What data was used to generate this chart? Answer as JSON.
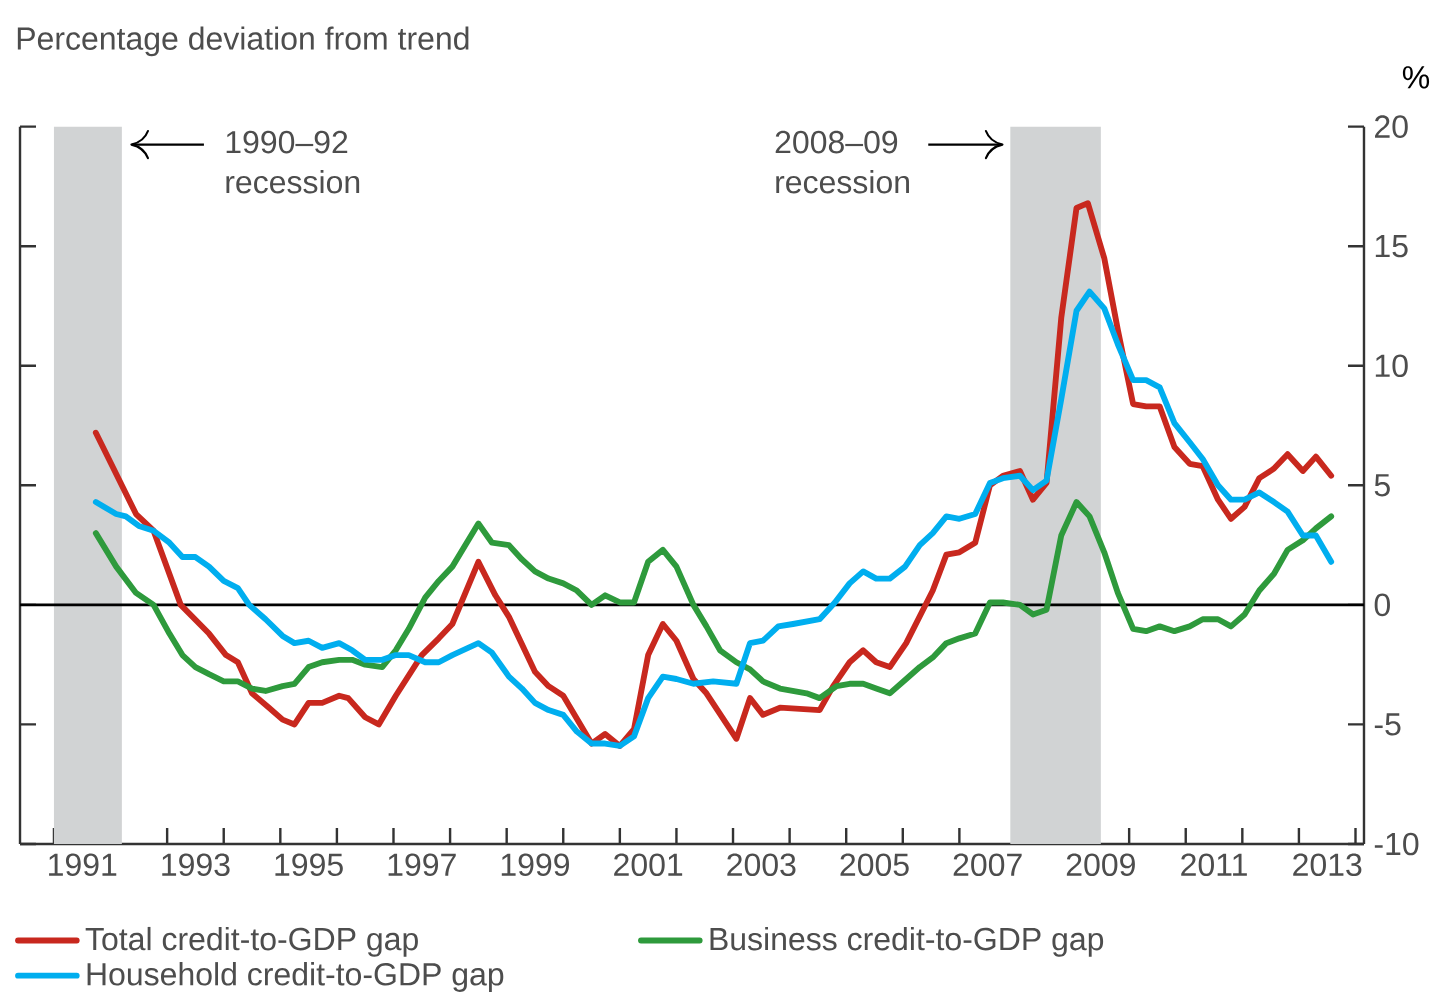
{
  "chart_data": {
    "type": "line",
    "subtitle": "Percentage deviation from trend",
    "ylabel": "%",
    "xlim": [
      1990.4,
      2014.15
    ],
    "ylim": [
      -10,
      20
    ],
    "xticks": [
      {
        "value": 1991,
        "label": null
      },
      {
        "value": 1991.5,
        "label": "1991"
      },
      {
        "value": 1992,
        "label": null
      },
      {
        "value": 1993,
        "label": null
      },
      {
        "value": 1993.5,
        "label": "1993"
      },
      {
        "value": 1994,
        "label": null
      },
      {
        "value": 1995,
        "label": null
      },
      {
        "value": 1995.5,
        "label": "1995"
      },
      {
        "value": 1996,
        "label": null
      },
      {
        "value": 1997,
        "label": null
      },
      {
        "value": 1997.5,
        "label": "1997"
      },
      {
        "value": 1998,
        "label": null
      },
      {
        "value": 1999,
        "label": null
      },
      {
        "value": 1999.5,
        "label": "1999"
      },
      {
        "value": 2000,
        "label": null
      },
      {
        "value": 2001,
        "label": null
      },
      {
        "value": 2001.5,
        "label": "2001"
      },
      {
        "value": 2002,
        "label": null
      },
      {
        "value": 2003,
        "label": null
      },
      {
        "value": 2003.5,
        "label": "2003"
      },
      {
        "value": 2004,
        "label": null
      },
      {
        "value": 2005,
        "label": null
      },
      {
        "value": 2005.5,
        "label": "2005"
      },
      {
        "value": 2006,
        "label": null
      },
      {
        "value": 2007,
        "label": null
      },
      {
        "value": 2007.5,
        "label": "2007"
      },
      {
        "value": 2008,
        "label": null
      },
      {
        "value": 2009,
        "label": null
      },
      {
        "value": 2009.5,
        "label": "2009"
      },
      {
        "value": 2010,
        "label": null
      },
      {
        "value": 2011,
        "label": null
      },
      {
        "value": 2011.5,
        "label": "2011"
      },
      {
        "value": 2012,
        "label": null
      },
      {
        "value": 2013,
        "label": null
      },
      {
        "value": 2013.5,
        "label": "2013"
      },
      {
        "value": 2014,
        "label": null
      }
    ],
    "yticks": [
      -10,
      -5,
      0,
      5,
      10,
      15,
      20
    ],
    "legend": "bottom",
    "line_style": "solid",
    "ref_lines": [
      {
        "axis": "y",
        "value": 0,
        "color": "#000000"
      }
    ],
    "bands": [
      {
        "axis": "x",
        "from": 1991.0,
        "to": 1992.2,
        "label": "1990–92 recession",
        "color": "#d1d3d4"
      },
      {
        "axis": "x",
        "from": 2007.9,
        "to": 2009.5,
        "label": "2008–09 recession",
        "color": "#d1d3d4"
      }
    ],
    "series": [
      {
        "name": "Total credit-to-GDP gap",
        "color": "#c8281e",
        "x": [
          1991.74,
          1992.45,
          1992.76,
          1993.24,
          1993.74,
          1994.04,
          1994.25,
          1994.5,
          1994.8,
          1995.04,
          1995.25,
          1995.5,
          1995.74,
          1996.04,
          1996.2,
          1996.5,
          1996.74,
          1997.04,
          1997.5,
          1997.8,
          1998.04,
          1998.5,
          1998.8,
          1999.04,
          1999.5,
          1999.74,
          2000.0,
          2000.5,
          2000.74,
          2001.0,
          2001.25,
          2001.5,
          2001.76,
          2002.0,
          2002.3,
          2002.53,
          2003.06,
          2003.3,
          2003.53,
          2003.83,
          2004.53,
          2004.77,
          2005.06,
          2005.3,
          2005.53,
          2005.77,
          2006.06,
          2006.53,
          2006.77,
          2007.0,
          2007.28,
          2007.54,
          2007.77,
          2008.07,
          2008.3,
          2008.54,
          2008.8,
          2009.07,
          2009.27,
          2009.56,
          2009.8,
          2010.07,
          2010.3,
          2010.54,
          2010.8,
          2011.07,
          2011.3,
          2011.57,
          2011.8,
          2012.04,
          2012.3,
          2012.56,
          2012.8,
          2013.07,
          2013.3,
          2013.57
        ],
        "values": [
          7.2,
          3.8,
          3.1,
          0,
          -1.2,
          -2.1,
          -2.4,
          -3.7,
          -4.3,
          -4.8,
          -5.0,
          -4.1,
          -4.1,
          -3.8,
          -3.9,
          -4.7,
          -5.0,
          -3.8,
          -2.1,
          -1.4,
          -0.8,
          1.8,
          0.4,
          -0.5,
          -2.8,
          -3.4,
          -3.8,
          -5.8,
          -5.4,
          -5.9,
          -5.2,
          -2.1,
          -0.8,
          -1.5,
          -3.1,
          -3.7,
          -5.6,
          -3.9,
          -4.6,
          -4.3,
          -4.4,
          -3.4,
          -2.4,
          -1.9,
          -2.4,
          -2.6,
          -1.6,
          0.6,
          2.1,
          2.2,
          2.6,
          5.0,
          5.4,
          5.6,
          4.4,
          5.1,
          12.0,
          16.6,
          16.8,
          14.5,
          11.5,
          8.4,
          8.3,
          8.3,
          6.6,
          5.9,
          5.8,
          4.4,
          3.6,
          4.1,
          5.3,
          5.7,
          6.3,
          5.6,
          6.2,
          5.4
        ]
      },
      {
        "name": "Business credit-to-GDP gap",
        "color": "#2e9a3c",
        "x": [
          1991.74,
          1992.1,
          1992.45,
          1992.76,
          1993.04,
          1993.27,
          1993.5,
          1993.74,
          1994.0,
          1994.25,
          1994.5,
          1994.74,
          1995.04,
          1995.25,
          1995.5,
          1995.74,
          1996.04,
          1996.27,
          1996.5,
          1996.8,
          1997.04,
          1997.27,
          1997.56,
          1997.8,
          1998.04,
          1998.5,
          1998.74,
          1999.04,
          1999.27,
          1999.5,
          1999.74,
          2000.0,
          2000.24,
          2000.5,
          2000.74,
          2001.0,
          2001.25,
          2001.5,
          2001.76,
          2002.0,
          2002.3,
          2002.53,
          2002.77,
          2003.06,
          2003.3,
          2003.53,
          2003.83,
          2004.3,
          2004.53,
          2004.83,
          2005.06,
          2005.3,
          2005.53,
          2005.77,
          2006.06,
          2006.3,
          2006.53,
          2006.77,
          2007.0,
          2007.28,
          2007.54,
          2007.77,
          2008.07,
          2008.3,
          2008.54,
          2008.8,
          2009.07,
          2009.3,
          2009.56,
          2009.8,
          2010.07,
          2010.3,
          2010.54,
          2010.8,
          2011.07,
          2011.3,
          2011.57,
          2011.8,
          2012.04,
          2012.3,
          2012.56,
          2012.8,
          2013.07,
          2013.3,
          2013.57
        ],
        "values": [
          3.0,
          1.6,
          0.5,
          0,
          -1.2,
          -2.1,
          -2.6,
          -2.9,
          -3.2,
          -3.2,
          -3.5,
          -3.6,
          -3.4,
          -3.3,
          -2.6,
          -2.4,
          -2.3,
          -2.3,
          -2.5,
          -2.6,
          -1.9,
          -1.0,
          0.3,
          1.0,
          1.6,
          3.4,
          2.6,
          2.5,
          1.9,
          1.4,
          1.1,
          0.9,
          0.6,
          0,
          0.4,
          0.1,
          0.1,
          1.8,
          2.3,
          1.6,
          0,
          -0.9,
          -1.9,
          -2.4,
          -2.7,
          -3.2,
          -3.5,
          -3.7,
          -3.9,
          -3.4,
          -3.3,
          -3.3,
          -3.5,
          -3.7,
          -3.1,
          -2.6,
          -2.2,
          -1.6,
          -1.4,
          -1.2,
          0.1,
          0.1,
          0,
          -0.4,
          -0.2,
          2.9,
          4.3,
          3.7,
          2.2,
          0.5,
          -1.0,
          -1.1,
          -0.9,
          -1.1,
          -0.9,
          -0.6,
          -0.6,
          -0.9,
          -0.4,
          0.6,
          1.3,
          2.3,
          2.7,
          3.2,
          3.7
        ]
      },
      {
        "name": "Household credit-to-GDP gap",
        "color": "#00aeef",
        "x": [
          1991.74,
          1992.1,
          1992.27,
          1992.5,
          1992.76,
          1993.04,
          1993.27,
          1993.5,
          1993.74,
          1994.0,
          1994.25,
          1994.45,
          1994.74,
          1995.04,
          1995.25,
          1995.5,
          1995.74,
          1996.04,
          1996.27,
          1996.5,
          1996.8,
          1997.04,
          1997.27,
          1997.56,
          1997.8,
          1998.04,
          1998.5,
          1998.74,
          1999.04,
          1999.27,
          1999.5,
          1999.74,
          2000.0,
          2000.24,
          2000.5,
          2000.74,
          2001.0,
          2001.25,
          2001.5,
          2001.76,
          2002.0,
          2002.3,
          2002.65,
          2003.06,
          2003.3,
          2003.53,
          2003.8,
          2004.06,
          2004.53,
          2004.8,
          2005.06,
          2005.3,
          2005.53,
          2005.77,
          2006.04,
          2006.3,
          2006.53,
          2006.77,
          2007.0,
          2007.28,
          2007.54,
          2007.77,
          2008.07,
          2008.3,
          2008.54,
          2008.8,
          2009.07,
          2009.3,
          2009.56,
          2009.8,
          2010.07,
          2010.3,
          2010.54,
          2010.8,
          2011.07,
          2011.3,
          2011.57,
          2011.8,
          2012.04,
          2012.3,
          2012.56,
          2012.8,
          2013.07,
          2013.3,
          2013.57
        ],
        "values": [
          4.3,
          3.8,
          3.7,
          3.3,
          3.1,
          2.6,
          2.0,
          2.0,
          1.6,
          1.0,
          0.7,
          0,
          -0.6,
          -1.3,
          -1.6,
          -1.5,
          -1.8,
          -1.6,
          -1.9,
          -2.3,
          -2.3,
          -2.1,
          -2.1,
          -2.4,
          -2.4,
          -2.1,
          -1.6,
          -2.0,
          -3.0,
          -3.5,
          -4.1,
          -4.4,
          -4.6,
          -5.3,
          -5.8,
          -5.8,
          -5.9,
          -5.5,
          -3.9,
          -3.0,
          -3.1,
          -3.3,
          -3.2,
          -3.3,
          -1.6,
          -1.5,
          -0.9,
          -0.8,
          -0.6,
          0.1,
          0.9,
          1.4,
          1.1,
          1.1,
          1.6,
          2.5,
          3.0,
          3.7,
          3.6,
          3.8,
          5.1,
          5.3,
          5.4,
          4.8,
          5.2,
          8.6,
          12.3,
          13.1,
          12.4,
          10.9,
          9.4,
          9.4,
          9.1,
          7.6,
          6.8,
          6.1,
          5.0,
          4.4,
          4.4,
          4.7,
          4.3,
          3.9,
          2.9,
          2.9,
          1.8
        ]
      }
    ]
  }
}
